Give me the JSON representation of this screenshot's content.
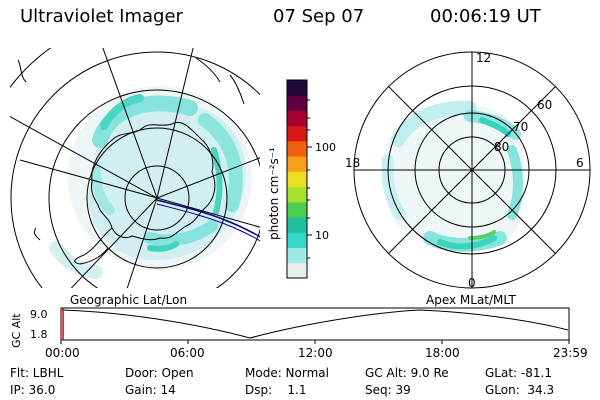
{
  "header": {
    "title": "Ultraviolet Imager",
    "date": "07 Sep 07",
    "time": "00:06:19 UT"
  },
  "colorbar": {
    "label": "photon cm⁻²s⁻¹",
    "tick_labels": [
      "100",
      "10"
    ],
    "colors": [
      "#e8eef0",
      "#9fe8e8",
      "#34d8c8",
      "#20c0a0",
      "#4ad050",
      "#a8e030",
      "#e8e020",
      "#f8a018",
      "#f06010",
      "#d81818",
      "#a80030",
      "#600040",
      "#200838"
    ]
  },
  "left_map": {
    "caption": "Geographic Lat/Lon"
  },
  "right_map": {
    "caption": "Apex MLat/MLT",
    "mlt_labels": {
      "top": "12",
      "left": "18",
      "right": "6",
      "bottom": "0"
    },
    "lat_labels": [
      "60",
      "70",
      "80"
    ]
  },
  "timeline": {
    "axis_label": "GC Alt",
    "y_ticks": [
      "9.0",
      "1.8"
    ],
    "x_ticks": [
      "00:00",
      "06:00",
      "12:00",
      "18:00",
      "23:59"
    ],
    "current_fraction": 0.004
  },
  "info": {
    "row1": [
      "Flt: LBHL",
      "Door: Open",
      "Mode: Normal",
      "GC Alt: 9.0 Re",
      "GLat: -81.1"
    ],
    "row2": [
      "IP: 36.0",
      "Gain: 14",
      "Dsp:    1.1",
      "Seq: 39",
      "GLon:  34.3"
    ]
  },
  "colors": {
    "aurora_light": "#dff0f2",
    "aurora_mid": "#8fe6e4",
    "aurora_strong": "#36d6c2",
    "aurora_green": "#4ccf56",
    "track": "#000080",
    "cursor": "#e00000"
  }
}
